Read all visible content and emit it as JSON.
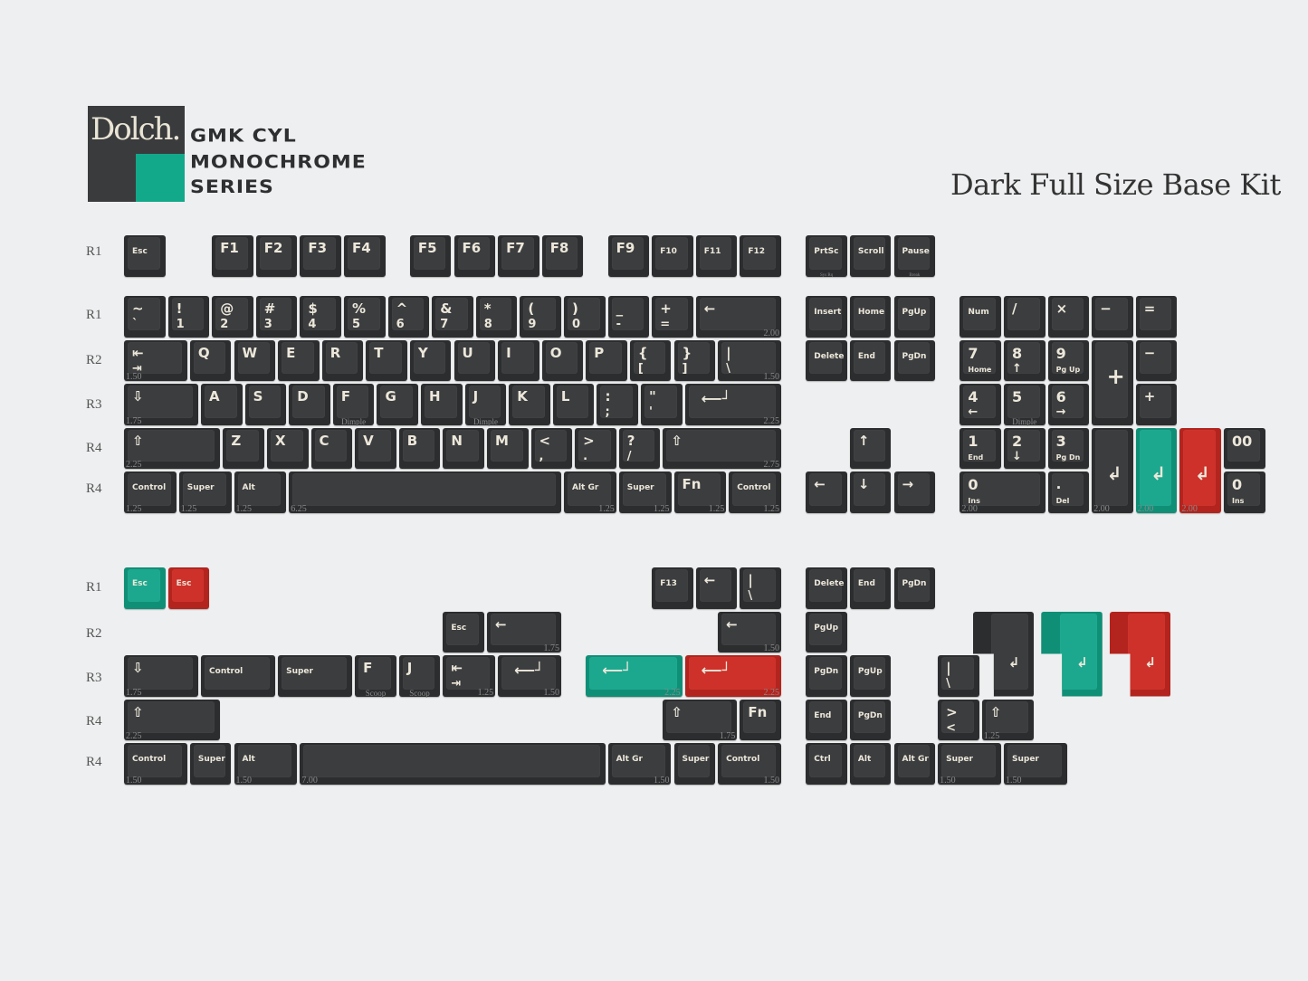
{
  "brand": {
    "logo_word": "Dolch.",
    "series_lines": [
      "GMK CYL",
      "MONOCHROME",
      "SERIES"
    ],
    "colors": {
      "dark": "#3c3d3f",
      "teal": "#1ca88e",
      "red": "#cd3129",
      "legend": "#ece7da"
    }
  },
  "title": "Dark Full Size Base Kit",
  "row_labels": {
    "base": [
      "R1",
      "R1",
      "R2",
      "R3",
      "R4",
      "R4"
    ],
    "extras": [
      "R1",
      "R2",
      "R3",
      "R4",
      "R4"
    ]
  },
  "function_row": [
    {
      "t": "Esc"
    },
    {
      "t": "F1"
    },
    {
      "t": "F2"
    },
    {
      "t": "F3"
    },
    {
      "t": "F4"
    },
    {
      "t": "F5"
    },
    {
      "t": "F6"
    },
    {
      "t": "F7"
    },
    {
      "t": "F8"
    },
    {
      "t": "F9"
    },
    {
      "t": "F10"
    },
    {
      "t": "F11"
    },
    {
      "t": "F12"
    },
    {
      "t": "PrtSc",
      "note": "Sys Rq"
    },
    {
      "t": "Scroll"
    },
    {
      "t": "Pause",
      "note": "Break"
    }
  ],
  "alpha_rows": [
    [
      {
        "t": "~",
        "b": "`"
      },
      {
        "t": "!",
        "b": "1"
      },
      {
        "t": "@",
        "b": "2"
      },
      {
        "t": "#",
        "b": "3"
      },
      {
        "t": "$",
        "b": "4"
      },
      {
        "t": "%",
        "b": "5"
      },
      {
        "t": "^",
        "b": "6"
      },
      {
        "t": "&",
        "b": "7"
      },
      {
        "t": "*",
        "b": "8"
      },
      {
        "t": "(",
        "b": "9"
      },
      {
        "t": ")",
        "b": "0"
      },
      {
        "t": "_",
        "b": "-"
      },
      {
        "t": "+",
        "b": "="
      },
      {
        "t": "←",
        "size": "2.00"
      }
    ],
    [
      {
        "t": "⇤",
        "b": "⇥",
        "size": "1.50"
      },
      {
        "t": "Q"
      },
      {
        "t": "W"
      },
      {
        "t": "E"
      },
      {
        "t": "R"
      },
      {
        "t": "T"
      },
      {
        "t": "Y"
      },
      {
        "t": "U"
      },
      {
        "t": "I"
      },
      {
        "t": "O"
      },
      {
        "t": "P"
      },
      {
        "t": "{",
        "b": "["
      },
      {
        "t": "}",
        "b": "]"
      },
      {
        "t": "|",
        "b": "\\",
        "size": "1.50"
      }
    ],
    [
      {
        "t": "⇩",
        "size": "1.75"
      },
      {
        "t": "A"
      },
      {
        "t": "S"
      },
      {
        "t": "D"
      },
      {
        "t": "F",
        "note": "Dimple"
      },
      {
        "t": "G"
      },
      {
        "t": "H"
      },
      {
        "t": "J",
        "note": "Dimple"
      },
      {
        "t": "K"
      },
      {
        "t": "L"
      },
      {
        "t": ":",
        "b": ";"
      },
      {
        "t": "\"",
        "b": "'"
      },
      {
        "t": "⟵┘",
        "size": "2.25"
      }
    ],
    [
      {
        "t": "⇧",
        "size": "2.25"
      },
      {
        "t": "Z"
      },
      {
        "t": "X"
      },
      {
        "t": "C"
      },
      {
        "t": "V"
      },
      {
        "t": "B"
      },
      {
        "t": "N"
      },
      {
        "t": "M"
      },
      {
        "t": "<",
        "b": ","
      },
      {
        "t": ">",
        "b": "."
      },
      {
        "t": "?",
        "b": "/"
      },
      {
        "t": "⇧",
        "size": "2.75"
      }
    ],
    [
      {
        "t": "Control",
        "size": "1.25"
      },
      {
        "t": "Super",
        "size": "1.25"
      },
      {
        "t": "Alt",
        "size": "1.25"
      },
      {
        "t": "",
        "size": "6.25"
      },
      {
        "t": "Alt Gr",
        "size": "1.25"
      },
      {
        "t": "Super",
        "size": "1.25"
      },
      {
        "t": "Fn",
        "size": "1.25"
      },
      {
        "t": "Control",
        "size": "1.25"
      }
    ]
  ],
  "nav_cluster": [
    {
      "t": "Insert"
    },
    {
      "t": "Home"
    },
    {
      "t": "PgUp"
    },
    {
      "t": "Delete"
    },
    {
      "t": "End"
    },
    {
      "t": "PgDn"
    },
    {
      "t": "↑"
    },
    {
      "t": "←"
    },
    {
      "t": "↓"
    },
    {
      "t": "→"
    }
  ],
  "numpad": [
    {
      "t": "Num"
    },
    {
      "t": "/"
    },
    {
      "t": "×"
    },
    {
      "t": "−"
    },
    {
      "t": "="
    },
    {
      "t": "7",
      "b": "Home"
    },
    {
      "t": "8",
      "b": "↑"
    },
    {
      "t": "9",
      "b": "Pg Up"
    },
    {
      "t": "+"
    },
    {
      "t": "−"
    },
    {
      "t": "4",
      "b": "←"
    },
    {
      "t": "5",
      "note": "Dimple"
    },
    {
      "t": "6",
      "b": "→"
    },
    {
      "t": "+"
    },
    {
      "t": "1",
      "b": "End"
    },
    {
      "t": "2",
      "b": "↓"
    },
    {
      "t": "3",
      "b": "Pg Dn"
    },
    {
      "t": "↲",
      "size": "2.00"
    },
    {
      "t": "↲",
      "size": "2.00",
      "color": "teal"
    },
    {
      "t": "↲",
      "size": "2.00",
      "color": "red"
    },
    {
      "t": "00"
    },
    {
      "t": "0",
      "b": "Ins",
      "size": "2.00"
    },
    {
      "t": ".",
      "b": "Del"
    },
    {
      "t": "0",
      "b": "Ins"
    }
  ],
  "extras": [
    {
      "t": "Esc",
      "color": "teal"
    },
    {
      "t": "Esc",
      "color": "red"
    },
    {
      "t": "F13"
    },
    {
      "t": "←"
    },
    {
      "t": "|",
      "b": "\\"
    },
    {
      "t": "Delete"
    },
    {
      "t": "End"
    },
    {
      "t": "PgDn"
    },
    {
      "t": "Esc"
    },
    {
      "t": "←",
      "size": "1.75"
    },
    {
      "t": "←",
      "size": "1.50"
    },
    {
      "t": "PgUp"
    },
    {
      "t": "↲"
    },
    {
      "t": "↲",
      "color": "teal"
    },
    {
      "t": "↲",
      "color": "red"
    },
    {
      "t": "⇩",
      "size": "1.75"
    },
    {
      "t": "Control"
    },
    {
      "t": "Super"
    },
    {
      "t": "F",
      "note": "Scoop"
    },
    {
      "t": "J",
      "note": "Scoop"
    },
    {
      "t": "⇤",
      "b": "⇥",
      "size": "1.25"
    },
    {
      "t": "⟵┘",
      "size": "1.50"
    },
    {
      "t": "⟵┘",
      "size": "2.25",
      "color": "teal"
    },
    {
      "t": "⟵┘",
      "size": "2.25",
      "color": "red"
    },
    {
      "t": "PgDn"
    },
    {
      "t": "PgUp"
    },
    {
      "t": "|",
      "b": "\\"
    },
    {
      "t": "⇧",
      "size": "2.25"
    },
    {
      "t": "⇧",
      "size": "1.75"
    },
    {
      "t": "Fn"
    },
    {
      "t": "End"
    },
    {
      "t": "PgDn"
    },
    {
      "t": ">",
      "b": "<"
    },
    {
      "t": "⇧",
      "size": "1.25"
    },
    {
      "t": "Control",
      "size": "1.50"
    },
    {
      "t": "Super"
    },
    {
      "t": "Alt",
      "size": "1.50"
    },
    {
      "t": "",
      "size": "7.00"
    },
    {
      "t": "Alt Gr",
      "size": "1.50"
    },
    {
      "t": "Super"
    },
    {
      "t": "Control",
      "size": "1.50"
    },
    {
      "t": "Ctrl"
    },
    {
      "t": "Alt"
    },
    {
      "t": "Alt Gr"
    },
    {
      "t": "Super",
      "size": "1.50"
    },
    {
      "t": "Super",
      "size": "1.50"
    }
  ]
}
